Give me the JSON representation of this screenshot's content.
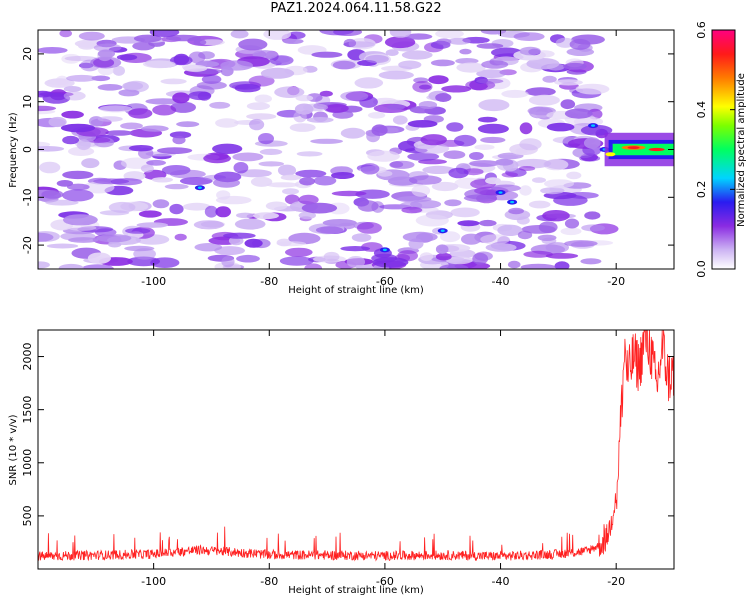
{
  "figure": {
    "title": "PAZ1.2024.064.11.58.G22"
  },
  "colors": {
    "spectrogram_noise": "#8a2be2",
    "spectrogram_low": "#d9c4f5",
    "signal_line": "#ff2020",
    "axes": "#000000"
  },
  "chart_data": [
    {
      "type": "heatmap",
      "title": "PAZ1.2024.064.11.58.G22",
      "xlabel": "Height of straight line (km)",
      "ylabel": "Frequency (Hz)",
      "xlim": [
        -120,
        -10
      ],
      "ylim": [
        -25,
        25
      ],
      "xticks": [
        -100,
        -80,
        -60,
        -40,
        -20
      ],
      "yticks": [
        -20,
        -10,
        0,
        10,
        20
      ],
      "colorbar": {
        "label": "Normalized spectral amplitude",
        "range": [
          0.0,
          0.6
        ],
        "ticks": [
          "0.0",
          "0.2",
          "0.4",
          "0.6"
        ],
        "colormap": "white-purple-blue-cyan-green-yellow-red-magenta"
      },
      "features": [
        {
          "x_range": [
            -120,
            -22
          ],
          "y_range": [
            -25,
            25
          ],
          "amplitude": 0.12,
          "description": "broadband noise blobs"
        },
        {
          "x_range": [
            -22,
            -10
          ],
          "y_center": 0,
          "y_halfwidth": 2,
          "amplitude": 0.6,
          "description": "strong narrowband signal near 0 Hz"
        }
      ]
    },
    {
      "type": "line",
      "xlabel": "Height of straight line (km)",
      "ylabel": "SNR (10 * v/v)",
      "xlim": [
        -120,
        -10
      ],
      "ylim": [
        0,
        2250
      ],
      "xticks": [
        -100,
        -80,
        -60,
        -40,
        -20
      ],
      "yticks": [
        500,
        1000,
        1500,
        2000
      ],
      "series": [
        {
          "points": [
            [
              -120,
              120
            ],
            [
              -110,
              130
            ],
            [
              -100,
              140
            ],
            [
              -92,
              180
            ],
            [
              -80,
              135
            ],
            [
              -70,
              130
            ],
            [
              -60,
              125
            ],
            [
              -50,
              130
            ],
            [
              -40,
              120
            ],
            [
              -30,
              140
            ],
            [
              -25,
              170
            ],
            [
              -22,
              250
            ],
            [
              -21,
              400
            ],
            [
              -20,
              700
            ],
            [
              -19.5,
              1100
            ],
            [
              -19,
              1600
            ],
            [
              -18.5,
              2100
            ],
            [
              -18,
              1800
            ],
            [
              -17,
              2000
            ],
            [
              -16,
              1900
            ],
            [
              -15,
              2200
            ],
            [
              -14,
              2050
            ],
            [
              -13,
              1700
            ],
            [
              -12,
              2100
            ],
            [
              -11,
              1800
            ],
            [
              -10,
              1850
            ]
          ]
        }
      ]
    }
  ]
}
